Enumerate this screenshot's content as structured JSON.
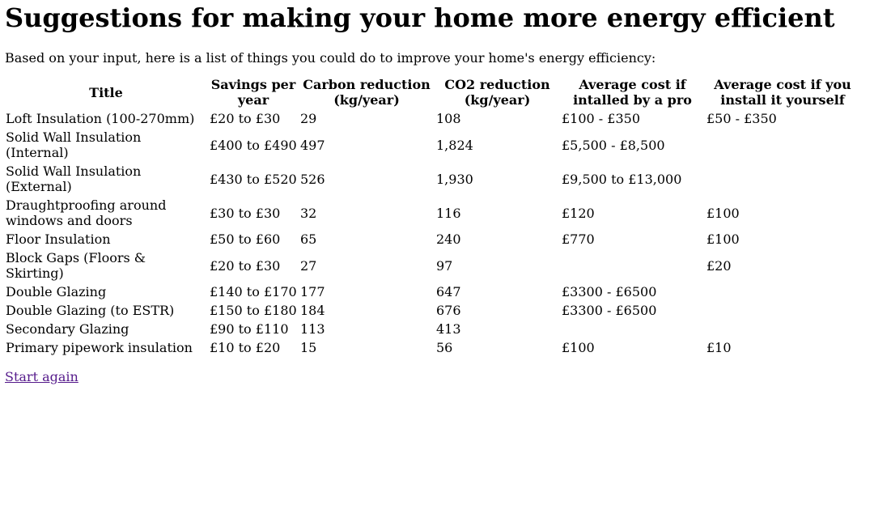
{
  "page": {
    "title": "Suggestions for making your home more energy efficient",
    "intro": "Based on your input, here is a list of things you could do to improve your home's energy efficiency:",
    "start_again": "Start again"
  },
  "table": {
    "headers": {
      "title": "Title",
      "savings": "Savings per year",
      "carbon": "Carbon reduction (kg/year)",
      "co2": "CO2 reduction (kg/year)",
      "pro_cost": "Average cost if intalled by a pro",
      "diy_cost": "Average cost if you install it yourself"
    },
    "rows": [
      {
        "title": "Loft Insulation (100-270mm)",
        "savings": "£20 to £30",
        "carbon": "29",
        "co2": "108",
        "pro_cost": "£100 - £350",
        "diy_cost": "£50 - £350"
      },
      {
        "title": "Solid Wall Insulation (Internal)",
        "savings": "£400 to £490",
        "carbon": "497",
        "co2": "1,824",
        "pro_cost": "£5,500 - £8,500",
        "diy_cost": ""
      },
      {
        "title": "Solid Wall Insulation (External)",
        "savings": "£430 to £520",
        "carbon": "526",
        "co2": "1,930",
        "pro_cost": "£9,500 to £13,000",
        "diy_cost": ""
      },
      {
        "title": "Draughtproofing around windows and doors",
        "savings": "£30 to £30",
        "carbon": "32",
        "co2": "116",
        "pro_cost": "£120",
        "diy_cost": "£100"
      },
      {
        "title": "Floor Insulation",
        "savings": "£50 to £60",
        "carbon": "65",
        "co2": "240",
        "pro_cost": "£770",
        "diy_cost": "£100"
      },
      {
        "title": "Block Gaps (Floors & Skirting)",
        "savings": "£20 to £30",
        "carbon": "27",
        "co2": "97",
        "pro_cost": "",
        "diy_cost": "£20"
      },
      {
        "title": "Double Glazing",
        "savings": "£140 to £170",
        "carbon": "177",
        "co2": "647",
        "pro_cost": "£3300 - £6500",
        "diy_cost": ""
      },
      {
        "title": "Double Glazing (to ESTR)",
        "savings": "£150 to £180",
        "carbon": "184",
        "co2": "676",
        "pro_cost": "£3300 - £6500",
        "diy_cost": ""
      },
      {
        "title": "Secondary Glazing",
        "savings": "£90 to £110",
        "carbon": "113",
        "co2": "413",
        "pro_cost": "",
        "diy_cost": ""
      },
      {
        "title": "Primary pipework insulation",
        "savings": "£10 to £20",
        "carbon": "15",
        "co2": "56",
        "pro_cost": "£100",
        "diy_cost": "£10"
      }
    ]
  }
}
